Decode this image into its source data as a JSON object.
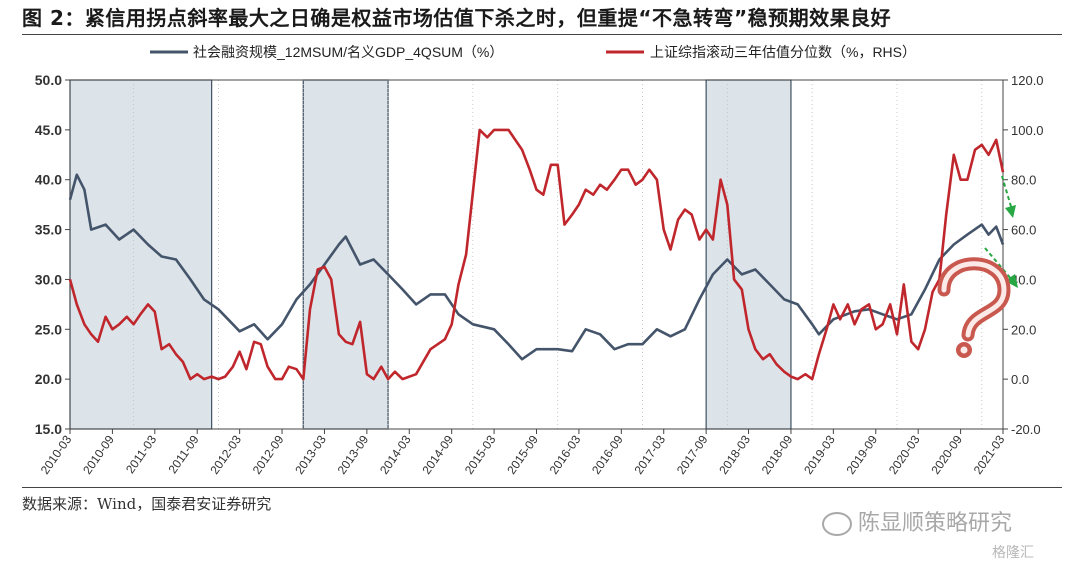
{
  "figure_title": "图 2：紧信用拐点斜率最大之日确是权益市场估值下杀之时，但重提“不急转弯”稳预期效果良好",
  "source_note": "数据来源：Wind，国泰君安证券研究",
  "watermark": "陈显顺策略研究",
  "watermark_small": "格隆汇",
  "colors": {
    "left_series": "#44546a",
    "right_series": "#c0272d",
    "shade": "#dce4ea",
    "shade_border": "#3f5060",
    "arrow": "#27a844"
  },
  "chart_data": {
    "type": "line",
    "legend_position": "top",
    "grid": false,
    "y_left": {
      "min": 15,
      "max": 50,
      "ticks": [
        "50.0",
        "45.0",
        "40.0",
        "35.0",
        "30.0",
        "25.0",
        "20.0",
        "15.0"
      ]
    },
    "y_right": {
      "min": -20,
      "max": 120,
      "ticks": [
        "120.0",
        "100.0",
        "80.0",
        "60.0",
        "40.0",
        "20.0",
        "0.0",
        "-20.0"
      ]
    },
    "x_range": [
      2010.25,
      2021.25
    ],
    "x_ticks": [
      "2010-03",
      "2010-09",
      "2011-03",
      "2011-09",
      "2012-03",
      "2012-09",
      "2013-03",
      "2013-09",
      "2014-03",
      "2014-09",
      "2015-03",
      "2015-09",
      "2016-03",
      "2016-09",
      "2017-03",
      "2017-09",
      "2018-03",
      "2018-09",
      "2019-03",
      "2019-09",
      "2020-03",
      "2020-09",
      "2021-03"
    ],
    "shaded_periods": [
      [
        2010.25,
        2011.92
      ],
      [
        2013.0,
        2014.0
      ],
      [
        2017.75,
        2018.75
      ]
    ],
    "series": [
      {
        "name": "社会融资规模_12MSUM/名义GDP_4QSUM（%）",
        "axis": "left",
        "points": [
          [
            2010.25,
            38.0
          ],
          [
            2010.33,
            40.5
          ],
          [
            2010.42,
            39.0
          ],
          [
            2010.5,
            35.0
          ],
          [
            2010.67,
            35.5
          ],
          [
            2010.83,
            34.0
          ],
          [
            2011.0,
            35.0
          ],
          [
            2011.17,
            33.5
          ],
          [
            2011.33,
            32.3
          ],
          [
            2011.5,
            32.0
          ],
          [
            2011.67,
            30.0
          ],
          [
            2011.83,
            28.0
          ],
          [
            2012.0,
            27.0
          ],
          [
            2012.17,
            25.5
          ],
          [
            2012.25,
            24.8
          ],
          [
            2012.42,
            25.5
          ],
          [
            2012.58,
            24.0
          ],
          [
            2012.75,
            25.5
          ],
          [
            2012.92,
            28.0
          ],
          [
            2013.08,
            29.5
          ],
          [
            2013.25,
            31.5
          ],
          [
            2013.42,
            33.5
          ],
          [
            2013.5,
            34.3
          ],
          [
            2013.67,
            31.5
          ],
          [
            2013.83,
            32.0
          ],
          [
            2014.0,
            30.5
          ],
          [
            2014.17,
            29.0
          ],
          [
            2014.33,
            27.5
          ],
          [
            2014.5,
            28.5
          ],
          [
            2014.67,
            28.5
          ],
          [
            2014.83,
            26.5
          ],
          [
            2015.0,
            25.5
          ],
          [
            2015.25,
            25.0
          ],
          [
            2015.42,
            23.5
          ],
          [
            2015.58,
            22.0
          ],
          [
            2015.75,
            23.0
          ],
          [
            2016.0,
            23.0
          ],
          [
            2016.17,
            22.8
          ],
          [
            2016.33,
            25.0
          ],
          [
            2016.5,
            24.5
          ],
          [
            2016.67,
            23.0
          ],
          [
            2016.83,
            23.5
          ],
          [
            2017.0,
            23.5
          ],
          [
            2017.17,
            25.0
          ],
          [
            2017.33,
            24.3
          ],
          [
            2017.5,
            25.0
          ],
          [
            2017.67,
            28.0
          ],
          [
            2017.83,
            30.5
          ],
          [
            2018.0,
            32.0
          ],
          [
            2018.17,
            30.5
          ],
          [
            2018.33,
            31.0
          ],
          [
            2018.5,
            29.5
          ],
          [
            2018.67,
            28.0
          ],
          [
            2018.83,
            27.5
          ],
          [
            2019.0,
            25.5
          ],
          [
            2019.08,
            24.5
          ],
          [
            2019.25,
            26.0
          ],
          [
            2019.5,
            26.8
          ],
          [
            2019.67,
            27.0
          ],
          [
            2019.83,
            26.5
          ],
          [
            2020.0,
            26.0
          ],
          [
            2020.17,
            26.5
          ],
          [
            2020.33,
            29.0
          ],
          [
            2020.5,
            32.0
          ],
          [
            2020.67,
            33.5
          ],
          [
            2020.83,
            34.5
          ],
          [
            2021.0,
            35.5
          ],
          [
            2021.08,
            34.5
          ],
          [
            2021.17,
            35.3
          ],
          [
            2021.25,
            33.5
          ]
        ]
      },
      {
        "name": "上证综指滚动三年估值分位数（%，RHS）",
        "axis": "right",
        "points": [
          [
            2010.25,
            40.0
          ],
          [
            2010.33,
            30.0
          ],
          [
            2010.42,
            22.0
          ],
          [
            2010.5,
            18.0
          ],
          [
            2010.58,
            15.0
          ],
          [
            2010.67,
            25.0
          ],
          [
            2010.75,
            20.0
          ],
          [
            2010.83,
            22.0
          ],
          [
            2010.92,
            25.0
          ],
          [
            2011.0,
            22.0
          ],
          [
            2011.08,
            26.0
          ],
          [
            2011.17,
            30.0
          ],
          [
            2011.25,
            27.0
          ],
          [
            2011.33,
            12.0
          ],
          [
            2011.42,
            14.0
          ],
          [
            2011.5,
            10.0
          ],
          [
            2011.58,
            7.0
          ],
          [
            2011.67,
            0.0
          ],
          [
            2011.75,
            2.0
          ],
          [
            2011.83,
            0.0
          ],
          [
            2011.92,
            1.0
          ],
          [
            2012.0,
            0.0
          ],
          [
            2012.08,
            1.0
          ],
          [
            2012.17,
            5.0
          ],
          [
            2012.25,
            11.0
          ],
          [
            2012.33,
            4.0
          ],
          [
            2012.42,
            15.0
          ],
          [
            2012.5,
            14.0
          ],
          [
            2012.58,
            5.0
          ],
          [
            2012.67,
            0.0
          ],
          [
            2012.75,
            0.0
          ],
          [
            2012.83,
            5.0
          ],
          [
            2012.92,
            4.0
          ],
          [
            2013.0,
            0.0
          ],
          [
            2013.08,
            28.0
          ],
          [
            2013.17,
            44.0
          ],
          [
            2013.25,
            45.0
          ],
          [
            2013.33,
            40.0
          ],
          [
            2013.42,
            18.0
          ],
          [
            2013.5,
            15.0
          ],
          [
            2013.58,
            14.0
          ],
          [
            2013.67,
            23.0
          ],
          [
            2013.75,
            2.0
          ],
          [
            2013.83,
            0.0
          ],
          [
            2013.92,
            5.0
          ],
          [
            2014.0,
            0.0
          ],
          [
            2014.08,
            3.0
          ],
          [
            2014.17,
            0.0
          ],
          [
            2014.33,
            2.0
          ],
          [
            2014.5,
            12.0
          ],
          [
            2014.67,
            16.0
          ],
          [
            2014.75,
            22.0
          ],
          [
            2014.83,
            38.0
          ],
          [
            2014.92,
            50.0
          ],
          [
            2015.0,
            75.0
          ],
          [
            2015.08,
            100.0
          ],
          [
            2015.17,
            97.0
          ],
          [
            2015.25,
            100.0
          ],
          [
            2015.42,
            100.0
          ],
          [
            2015.58,
            92.0
          ],
          [
            2015.67,
            84.0
          ],
          [
            2015.75,
            76.0
          ],
          [
            2015.83,
            74.0
          ],
          [
            2015.92,
            86.0
          ],
          [
            2016.0,
            86.0
          ],
          [
            2016.08,
            62.0
          ],
          [
            2016.17,
            66.0
          ],
          [
            2016.25,
            70.0
          ],
          [
            2016.33,
            76.0
          ],
          [
            2016.42,
            74.0
          ],
          [
            2016.5,
            78.0
          ],
          [
            2016.58,
            76.0
          ],
          [
            2016.67,
            80.0
          ],
          [
            2016.75,
            84.0
          ],
          [
            2016.83,
            84.0
          ],
          [
            2016.92,
            78.0
          ],
          [
            2017.0,
            80.0
          ],
          [
            2017.08,
            84.0
          ],
          [
            2017.17,
            80.0
          ],
          [
            2017.25,
            60.0
          ],
          [
            2017.33,
            52.0
          ],
          [
            2017.42,
            64.0
          ],
          [
            2017.5,
            68.0
          ],
          [
            2017.58,
            66.0
          ],
          [
            2017.67,
            56.0
          ],
          [
            2017.75,
            60.0
          ],
          [
            2017.83,
            56.0
          ],
          [
            2017.92,
            80.0
          ],
          [
            2018.0,
            70.0
          ],
          [
            2018.08,
            40.0
          ],
          [
            2018.17,
            36.0
          ],
          [
            2018.25,
            20.0
          ],
          [
            2018.33,
            12.0
          ],
          [
            2018.42,
            8.0
          ],
          [
            2018.5,
            10.0
          ],
          [
            2018.58,
            6.0
          ],
          [
            2018.67,
            3.0
          ],
          [
            2018.75,
            1.0
          ],
          [
            2018.83,
            0.0
          ],
          [
            2018.92,
            2.0
          ],
          [
            2019.0,
            0.0
          ],
          [
            2019.08,
            10.0
          ],
          [
            2019.17,
            20.0
          ],
          [
            2019.25,
            30.0
          ],
          [
            2019.33,
            24.0
          ],
          [
            2019.42,
            30.0
          ],
          [
            2019.5,
            22.0
          ],
          [
            2019.58,
            28.0
          ],
          [
            2019.67,
            30.0
          ],
          [
            2019.75,
            20.0
          ],
          [
            2019.83,
            22.0
          ],
          [
            2019.92,
            30.0
          ],
          [
            2020.0,
            18.0
          ],
          [
            2020.08,
            38.0
          ],
          [
            2020.17,
            15.0
          ],
          [
            2020.25,
            12.0
          ],
          [
            2020.33,
            20.0
          ],
          [
            2020.42,
            35.0
          ],
          [
            2020.5,
            40.0
          ],
          [
            2020.58,
            66.0
          ],
          [
            2020.67,
            90.0
          ],
          [
            2020.75,
            80.0
          ],
          [
            2020.83,
            80.0
          ],
          [
            2020.92,
            92.0
          ],
          [
            2021.0,
            94.0
          ],
          [
            2021.08,
            90.0
          ],
          [
            2021.17,
            96.0
          ],
          [
            2021.25,
            83.0
          ]
        ]
      }
    ]
  }
}
